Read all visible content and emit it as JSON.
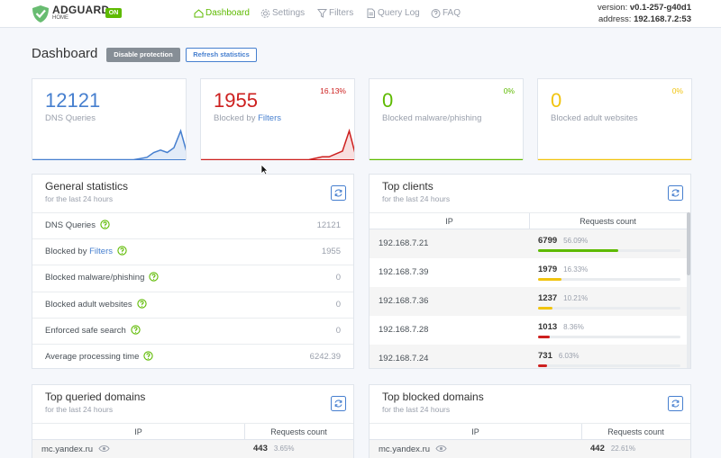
{
  "header": {
    "brand": "ADGUARD",
    "brand_sub": "HOME",
    "status": "ON",
    "nav": [
      "Dashboard",
      "Settings",
      "Filters",
      "Query Log",
      "FAQ"
    ],
    "version_label": "version:",
    "version": "v0.1-257-g40d1",
    "address_label": "address:",
    "address": "192.168.7.2:53"
  },
  "page": {
    "title": "Dashboard",
    "buttons": [
      "Disable protection",
      "Refresh statistics"
    ]
  },
  "cards": [
    {
      "value": 12121,
      "label": "DNS Queries",
      "color": "#467fcf",
      "trend": [
        0,
        0,
        0,
        0,
        0,
        0,
        0,
        0,
        0,
        0,
        0,
        0,
        0,
        0,
        0,
        0,
        0.5,
        1,
        3,
        4,
        3,
        5,
        12,
        2
      ]
    },
    {
      "value": 1955,
      "label": "Blocked by",
      "link": "Filters",
      "percent": "16.13%",
      "color": "#cd201f",
      "trend": [
        0,
        0,
        0,
        0,
        0,
        0,
        0,
        0,
        0,
        0,
        0,
        0,
        0,
        0,
        0,
        0,
        0,
        0.5,
        1,
        1,
        2,
        3,
        10,
        1
      ]
    },
    {
      "value": 0,
      "label": "Blocked malware/phishing",
      "percent": "0%",
      "color": "#5eba00",
      "trend": [
        0,
        0,
        0,
        0,
        0,
        0,
        0,
        0,
        0,
        0,
        0,
        0,
        0,
        0,
        0,
        0,
        0,
        0,
        0,
        0,
        0,
        0,
        0,
        0
      ]
    },
    {
      "value": 0,
      "label": "Blocked adult websites",
      "percent": "0%",
      "color": "#f1c40f",
      "trend": [
        0,
        0,
        0,
        0,
        0,
        0,
        0,
        0,
        0,
        0,
        0,
        0,
        0,
        0,
        0,
        0,
        0,
        0,
        0,
        0,
        0,
        0,
        0,
        0
      ]
    }
  ],
  "general": {
    "title": "General statistics",
    "subtitle": "for the last 24 hours",
    "rows": [
      {
        "label": "DNS Queries",
        "value": 12121
      },
      {
        "label": "Blocked by",
        "link": "Filters",
        "value": 1955
      },
      {
        "label": "Blocked malware/phishing",
        "value": 0
      },
      {
        "label": "Blocked adult websites",
        "value": 0
      },
      {
        "label": "Enforced safe search",
        "value": 0
      },
      {
        "label": "Average processing time",
        "value": 6242.39
      }
    ]
  },
  "clients": {
    "title": "Top clients",
    "subtitle": "for the last 24 hours",
    "columns": [
      "IP",
      "Requests count"
    ],
    "rows": [
      {
        "name": "192.168.7.21",
        "count": 6799,
        "percent": 56.09,
        "percent_label": "56.09%",
        "color": "#5eba00"
      },
      {
        "name": "192.168.7.39",
        "count": 1979,
        "percent": 16.33,
        "percent_label": "16.33%",
        "color": "#f1c40f"
      },
      {
        "name": "192.168.7.36",
        "count": 1237,
        "percent": 10.21,
        "percent_label": "10.21%",
        "color": "#f1c40f"
      },
      {
        "name": "192.168.7.28",
        "count": 1013,
        "percent": 8.36,
        "percent_label": "8.36%",
        "color": "#cd201f"
      },
      {
        "name": "192.168.7.24",
        "count": 731,
        "percent": 6.03,
        "percent_label": "6.03%",
        "color": "#cd201f"
      }
    ]
  },
  "queried": {
    "title": "Top queried domains",
    "subtitle": "for the last 24 hours",
    "columns": [
      "IP",
      "Requests count"
    ],
    "rows": [
      {
        "name": "mc.yandex.ru",
        "count": 443,
        "percent": 3.65,
        "percent_label": "3.65%",
        "color": "#cd201f"
      }
    ]
  },
  "blocked": {
    "title": "Top blocked domains",
    "subtitle": "for the last 24 hours",
    "columns": [
      "IP",
      "Requests count"
    ],
    "rows": [
      {
        "name": "mc.yandex.ru",
        "count": 442,
        "percent": 22.61,
        "percent_label": "22.61%",
        "color": "#f1c40f"
      }
    ]
  }
}
